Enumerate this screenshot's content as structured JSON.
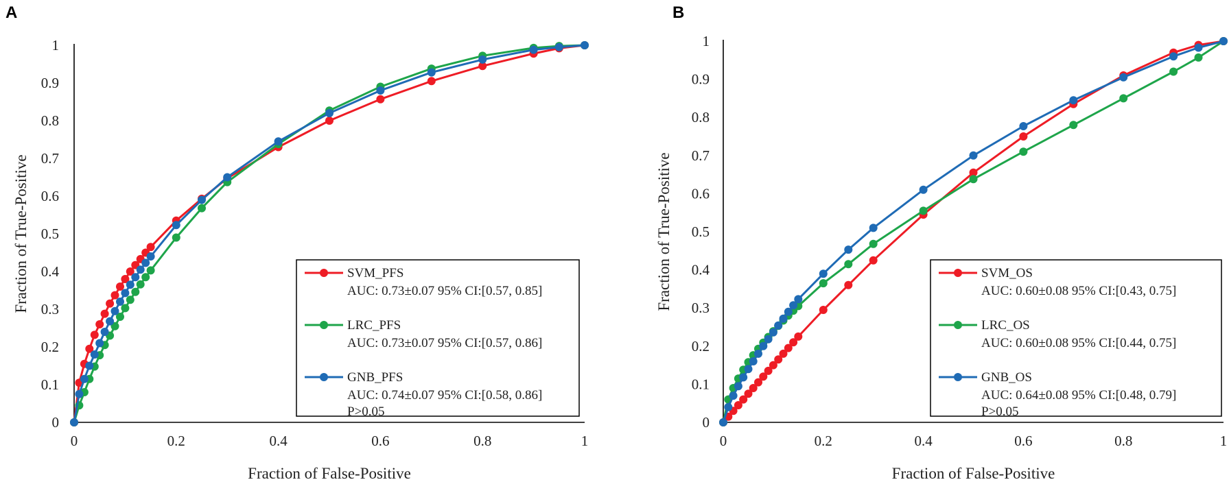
{
  "chart_data": [
    {
      "type": "line",
      "panel_label": "A",
      "xlabel": "Fraction of False-Positive",
      "ylabel": "Fraction of True-Positive",
      "xlim": [
        0,
        1
      ],
      "ylim": [
        0,
        1
      ],
      "x_ticks": [
        "0",
        "0.2",
        "0.4",
        "0.6",
        "0.8",
        "1"
      ],
      "y_ticks": [
        "0",
        "0.1",
        "0.2",
        "0.3",
        "0.4",
        "0.5",
        "0.6",
        "0.7",
        "0.8",
        "0.9",
        "1"
      ],
      "legend_position": "bottom-right",
      "legend_note": "P>0.05",
      "series": [
        {
          "name": "SVM_PFS",
          "auc_text": "AUC: 0.73±0.07   95% CI:[0.57, 0.85]",
          "color": "#ee1c25",
          "x": [
            0,
            0.01,
            0.02,
            0.03,
            0.04,
            0.05,
            0.06,
            0.07,
            0.08,
            0.09,
            0.1,
            0.11,
            0.12,
            0.13,
            0.14,
            0.15,
            0.2,
            0.25,
            0.3,
            0.4,
            0.5,
            0.6,
            0.7,
            0.8,
            0.9,
            0.95,
            1
          ],
          "y": [
            0,
            0.105,
            0.155,
            0.195,
            0.232,
            0.26,
            0.288,
            0.315,
            0.337,
            0.36,
            0.38,
            0.4,
            0.417,
            0.433,
            0.45,
            0.465,
            0.535,
            0.593,
            0.647,
            0.73,
            0.8,
            0.857,
            0.905,
            0.945,
            0.978,
            0.992,
            1
          ]
        },
        {
          "name": "LRC_PFS",
          "auc_text": "AUC: 0.73±0.07   95% CI:[0.57, 0.86]",
          "color": "#1ea54a",
          "x": [
            0,
            0.01,
            0.02,
            0.03,
            0.04,
            0.05,
            0.06,
            0.07,
            0.08,
            0.09,
            0.1,
            0.11,
            0.12,
            0.13,
            0.14,
            0.15,
            0.2,
            0.25,
            0.3,
            0.4,
            0.5,
            0.6,
            0.7,
            0.8,
            0.9,
            0.95,
            1
          ],
          "y": [
            0,
            0.045,
            0.08,
            0.115,
            0.148,
            0.178,
            0.205,
            0.23,
            0.255,
            0.28,
            0.303,
            0.325,
            0.346,
            0.366,
            0.385,
            0.403,
            0.49,
            0.568,
            0.637,
            0.738,
            0.827,
            0.89,
            0.938,
            0.972,
            0.993,
            0.998,
            1
          ]
        },
        {
          "name": "GNB_PFS",
          "auc_text": "AUC: 0.74±0.07   95% CI:[0.58, 0.86]",
          "color": "#1f6bb5",
          "x": [
            0,
            0.01,
            0.02,
            0.03,
            0.04,
            0.05,
            0.06,
            0.07,
            0.08,
            0.09,
            0.1,
            0.11,
            0.12,
            0.13,
            0.14,
            0.15,
            0.2,
            0.25,
            0.3,
            0.4,
            0.5,
            0.6,
            0.7,
            0.8,
            0.9,
            0.95,
            1
          ],
          "y": [
            0,
            0.075,
            0.115,
            0.15,
            0.18,
            0.21,
            0.24,
            0.268,
            0.295,
            0.32,
            0.343,
            0.365,
            0.385,
            0.405,
            0.423,
            0.44,
            0.523,
            0.59,
            0.65,
            0.745,
            0.82,
            0.88,
            0.928,
            0.962,
            0.988,
            0.995,
            1
          ]
        }
      ]
    },
    {
      "type": "line",
      "panel_label": "B",
      "xlabel": "Fraction of False-Positive",
      "ylabel": "Fraction of True-Positive",
      "xlim": [
        0,
        1
      ],
      "ylim": [
        0,
        1
      ],
      "x_ticks": [
        "0",
        "0.2",
        "0.4",
        "0.6",
        "0.8",
        "1"
      ],
      "y_ticks": [
        "0",
        "0.1",
        "0.2",
        "0.3",
        "0.4",
        "0.5",
        "0.6",
        "0.7",
        "0.8",
        "0.9",
        "1"
      ],
      "legend_position": "bottom-right",
      "legend_note": "P>0.05",
      "series": [
        {
          "name": "SVM_OS",
          "auc_text": "AUC: 0.60±0.08   95% CI:[0.43, 0.75]",
          "color": "#ee1c25",
          "x": [
            0,
            0.01,
            0.02,
            0.03,
            0.04,
            0.05,
            0.06,
            0.07,
            0.08,
            0.09,
            0.1,
            0.11,
            0.12,
            0.13,
            0.14,
            0.15,
            0.2,
            0.25,
            0.3,
            0.4,
            0.5,
            0.6,
            0.7,
            0.8,
            0.9,
            0.95,
            1
          ],
          "y": [
            0,
            0.015,
            0.03,
            0.045,
            0.06,
            0.075,
            0.09,
            0.105,
            0.12,
            0.135,
            0.15,
            0.165,
            0.18,
            0.195,
            0.21,
            0.225,
            0.295,
            0.36,
            0.425,
            0.545,
            0.655,
            0.75,
            0.835,
            0.91,
            0.97,
            0.99,
            1
          ]
        },
        {
          "name": "LRC_OS",
          "auc_text": "AUC: 0.60±0.08   95% CI:[0.44, 0.75]",
          "color": "#1ea54a",
          "x": [
            0,
            0.01,
            0.02,
            0.03,
            0.04,
            0.05,
            0.06,
            0.07,
            0.08,
            0.09,
            0.1,
            0.11,
            0.12,
            0.13,
            0.14,
            0.15,
            0.2,
            0.25,
            0.3,
            0.4,
            0.5,
            0.6,
            0.7,
            0.8,
            0.9,
            0.95,
            1
          ],
          "y": [
            0,
            0.06,
            0.09,
            0.115,
            0.138,
            0.158,
            0.176,
            0.193,
            0.209,
            0.224,
            0.239,
            0.253,
            0.267,
            0.28,
            0.293,
            0.305,
            0.365,
            0.415,
            0.468,
            0.555,
            0.638,
            0.71,
            0.78,
            0.85,
            0.92,
            0.957,
            1
          ]
        },
        {
          "name": "GNB_OS",
          "auc_text": "AUC: 0.64±0.08   95% CI:[0.48, 0.79]",
          "color": "#1f6bb5",
          "x": [
            0,
            0.01,
            0.02,
            0.03,
            0.04,
            0.05,
            0.06,
            0.07,
            0.08,
            0.09,
            0.1,
            0.11,
            0.12,
            0.13,
            0.14,
            0.15,
            0.2,
            0.25,
            0.3,
            0.4,
            0.5,
            0.6,
            0.7,
            0.8,
            0.9,
            0.95,
            1
          ],
          "y": [
            0,
            0.04,
            0.07,
            0.095,
            0.118,
            0.14,
            0.16,
            0.18,
            0.2,
            0.218,
            0.236,
            0.254,
            0.272,
            0.29,
            0.307,
            0.323,
            0.39,
            0.453,
            0.51,
            0.61,
            0.7,
            0.777,
            0.845,
            0.905,
            0.96,
            0.983,
            1
          ]
        }
      ]
    }
  ]
}
